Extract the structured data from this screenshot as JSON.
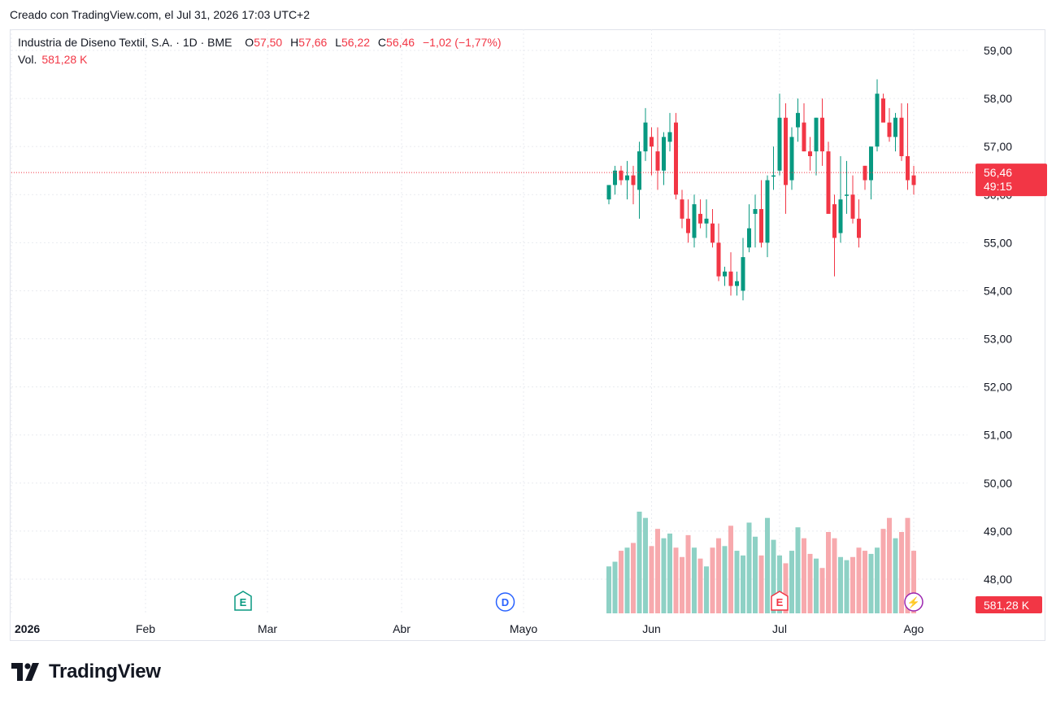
{
  "header": {
    "created": "Creado con TradingView.com, el Jul 31, 2026 17:03 UTC+2"
  },
  "legend": {
    "symbol": "Industria de Diseno Textil, S.A. · 1D · BME",
    "o_label": "O",
    "o": "57,50",
    "h_label": "H",
    "h": "57,66",
    "l_label": "L",
    "l": "56,22",
    "c_label": "C",
    "c": "56,46",
    "change": "−1,02 (−1,77%)"
  },
  "volume": {
    "label": "Vol.",
    "value": "581,28 K"
  },
  "price_tag": {
    "price": "56,46",
    "countdown": "49:15"
  },
  "volume_tag": "581,28 K",
  "events": [
    {
      "letter": "E",
      "x_label_index": 38
    },
    {
      "letter": "D",
      "x_label_index": 81
    },
    {
      "letter": "E",
      "x_label_index": 126
    },
    {
      "letter": "⚡",
      "x_label_index": 148
    }
  ],
  "brand": {
    "name": "TradingView"
  },
  "colors": {
    "up": "#089981",
    "down": "#f23645",
    "up_vol": "#8ed1c5",
    "down_vol": "#f7a9ad"
  },
  "chart_data": {
    "type": "candlestick",
    "ylim": [
      47.5,
      59.5
    ],
    "y_ticks": [
      "48,00",
      "49,00",
      "50,00",
      "51,00",
      "52,00",
      "53,00",
      "54,00",
      "55,00",
      "56,00",
      "57,00",
      "58,00",
      "59,00"
    ],
    "x_ticks": [
      {
        "label": "2026",
        "index": 0
      },
      {
        "label": "Feb",
        "index": 22
      },
      {
        "label": "Mar",
        "index": 42
      },
      {
        "label": "Abr",
        "index": 64
      },
      {
        "label": "Mayo",
        "index": 84
      },
      {
        "label": "Jun",
        "index": 105
      },
      {
        "label": "Jul",
        "index": 126
      },
      {
        "label": "Ago",
        "index": 148
      }
    ],
    "last_price": 56.46,
    "candles": [
      [
        55.9,
        56.2,
        55.8,
        56.2,
        300
      ],
      [
        56.2,
        56.6,
        56.0,
        56.5,
        330
      ],
      [
        56.5,
        56.6,
        56.2,
        56.3,
        400
      ],
      [
        56.3,
        56.7,
        55.9,
        56.4,
        420
      ],
      [
        56.4,
        56.6,
        55.8,
        56.2,
        450
      ],
      [
        56.1,
        57.1,
        55.5,
        56.9,
        650
      ],
      [
        56.9,
        57.8,
        56.7,
        57.5,
        610
      ],
      [
        57.2,
        57.4,
        56.4,
        57.0,
        430
      ],
      [
        56.9,
        57.4,
        56.1,
        56.5,
        540
      ],
      [
        56.5,
        57.3,
        56.2,
        57.2,
        480
      ],
      [
        57.1,
        57.7,
        56.9,
        57.3,
        510
      ],
      [
        57.5,
        57.7,
        55.9,
        56.0,
        420
      ],
      [
        55.9,
        56.1,
        55.3,
        55.5,
        360
      ],
      [
        55.5,
        55.9,
        55.0,
        55.2,
        500
      ],
      [
        55.1,
        56.0,
        54.9,
        55.8,
        420
      ],
      [
        55.6,
        55.9,
        55.3,
        55.4,
        350
      ],
      [
        55.4,
        55.9,
        55.1,
        55.5,
        300
      ],
      [
        55.4,
        55.7,
        54.9,
        55.0,
        420
      ],
      [
        55.0,
        55.4,
        54.2,
        54.3,
        480
      ],
      [
        54.3,
        54.5,
        54.1,
        54.4,
        430
      ],
      [
        54.4,
        54.8,
        53.9,
        54.1,
        560
      ],
      [
        54.1,
        54.4,
        53.9,
        54.2,
        400
      ],
      [
        54.0,
        55.1,
        53.8,
        54.7,
        370
      ],
      [
        54.9,
        55.8,
        54.8,
        55.3,
        580
      ],
      [
        55.6,
        56.0,
        54.9,
        55.7,
        490
      ],
      [
        55.7,
        56.3,
        54.9,
        55.0,
        370
      ],
      [
        55.0,
        56.4,
        54.7,
        56.3,
        610
      ],
      [
        56.4,
        57.0,
        56.1,
        56.4,
        470
      ],
      [
        56.5,
        58.1,
        56.4,
        57.6,
        370
      ],
      [
        57.6,
        57.9,
        55.6,
        56.2,
        320
      ],
      [
        56.3,
        57.4,
        56.1,
        57.2,
        400
      ],
      [
        57.4,
        58.0,
        57.1,
        57.7,
        550
      ],
      [
        57.5,
        57.9,
        56.9,
        56.9,
        480
      ],
      [
        56.9,
        57.2,
        56.5,
        56.8,
        380
      ],
      [
        56.9,
        57.6,
        56.4,
        57.6,
        350
      ],
      [
        57.6,
        58.0,
        56.6,
        56.9,
        290
      ],
      [
        56.9,
        57.1,
        55.7,
        55.6,
        520
      ],
      [
        55.8,
        56.0,
        54.3,
        55.1,
        480
      ],
      [
        55.2,
        56.8,
        55.0,
        55.9,
        360
      ],
      [
        56.0,
        56.7,
        55.6,
        56.0,
        340
      ],
      [
        56.0,
        56.4,
        55.4,
        55.5,
        360
      ],
      [
        55.5,
        55.9,
        54.9,
        55.1,
        420
      ],
      [
        56.6,
        56.6,
        56.1,
        56.3,
        400
      ],
      [
        56.3,
        57.0,
        55.9,
        57.0,
        380
      ],
      [
        57.0,
        58.4,
        56.9,
        58.1,
        420
      ],
      [
        58.0,
        58.1,
        57.6,
        57.5,
        540
      ],
      [
        57.5,
        57.8,
        57.1,
        57.2,
        610
      ],
      [
        57.2,
        57.7,
        56.9,
        57.6,
        480
      ],
      [
        57.6,
        57.9,
        56.7,
        56.8,
        520
      ],
      [
        56.8,
        57.9,
        56.1,
        56.3,
        610
      ],
      [
        56.4,
        56.6,
        56.0,
        56.2,
        400
      ]
    ]
  }
}
